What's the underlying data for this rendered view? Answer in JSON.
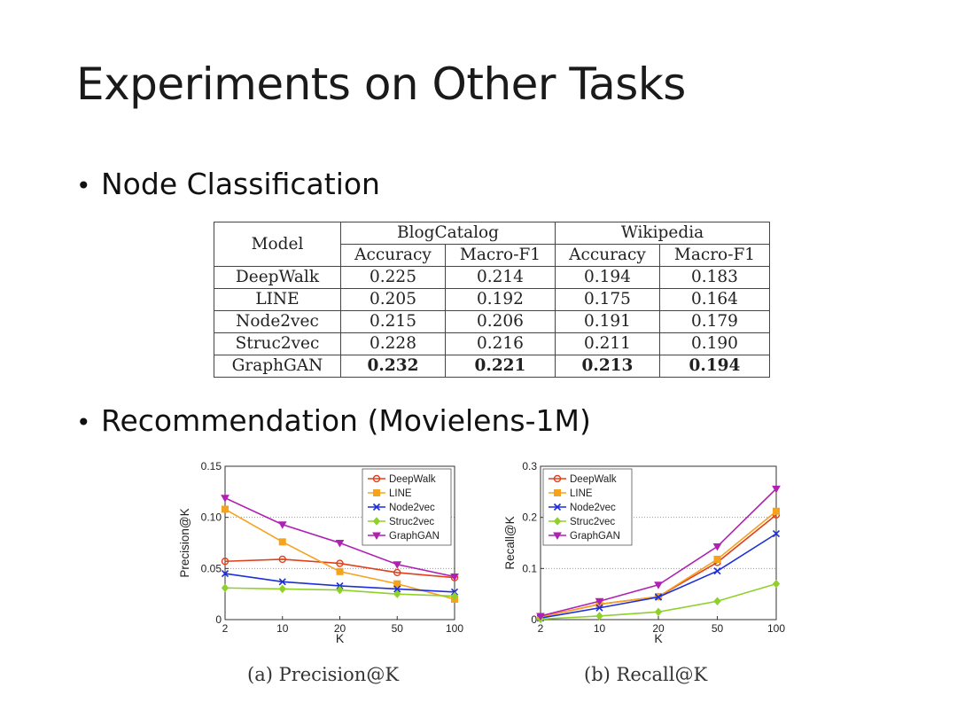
{
  "title": "Experiments on Other Tasks",
  "bullets": [
    "Node Classification",
    "Recommendation (Movielens-1M)"
  ],
  "bullet_symbol": "•",
  "table": {
    "model_header": "Model",
    "groups": [
      "BlogCatalog",
      "Wikipedia"
    ],
    "subheaders": [
      "Accuracy",
      "Macro-F1",
      "Accuracy",
      "Macro-F1"
    ],
    "rows": [
      {
        "model": "DeepWalk",
        "values": [
          "0.225",
          "0.214",
          "0.194",
          "0.183"
        ]
      },
      {
        "model": "LINE",
        "values": [
          "0.205",
          "0.192",
          "0.175",
          "0.164"
        ]
      },
      {
        "model": "Node2vec",
        "values": [
          "0.215",
          "0.206",
          "0.191",
          "0.179"
        ]
      },
      {
        "model": "Struc2vec",
        "values": [
          "0.228",
          "0.216",
          "0.211",
          "0.190"
        ]
      },
      {
        "model": "GraphGAN",
        "values": [
          "0.232",
          "0.221",
          "0.213",
          "0.194"
        ],
        "bold": true
      }
    ]
  },
  "chart_data": [
    {
      "type": "line",
      "caption": "(a) Precision@K",
      "xlabel": "K",
      "ylabel": "Precision@K",
      "x": [
        "2",
        "10",
        "20",
        "50",
        "100"
      ],
      "ylim": [
        0,
        0.15
      ],
      "yticks": [
        "0",
        "0.05",
        "0.10",
        "0.15"
      ],
      "grid": "dotted horizontal",
      "legend": "top-right",
      "series": [
        {
          "name": "DeepWalk",
          "color": "#e0401a",
          "marker": "circle",
          "values": [
            0.057,
            0.059,
            0.055,
            0.046,
            0.041
          ]
        },
        {
          "name": "LINE",
          "color": "#f5a21e",
          "marker": "square",
          "values": [
            0.108,
            0.076,
            0.047,
            0.035,
            0.02
          ]
        },
        {
          "name": "Node2vec",
          "color": "#1d2fd8",
          "marker": "x",
          "values": [
            0.045,
            0.037,
            0.033,
            0.03,
            0.027
          ]
        },
        {
          "name": "Struc2vec",
          "color": "#8fd12a",
          "marker": "diamond",
          "values": [
            0.031,
            0.03,
            0.029,
            0.025,
            0.023
          ]
        },
        {
          "name": "GraphGAN",
          "color": "#b021b3",
          "marker": "triangle-down",
          "values": [
            0.119,
            0.093,
            0.075,
            0.054,
            0.042
          ]
        }
      ]
    },
    {
      "type": "line",
      "caption": "(b) Recall@K",
      "xlabel": "K",
      "ylabel": "Recall@K",
      "x": [
        "2",
        "10",
        "20",
        "50",
        "100"
      ],
      "ylim": [
        0,
        0.3
      ],
      "yticks": [
        "0",
        "0.1",
        "0.2",
        "0.3"
      ],
      "grid": "dotted horizontal",
      "legend": "top-left",
      "series": [
        {
          "name": "DeepWalk",
          "color": "#e0401a",
          "marker": "circle",
          "values": [
            0.005,
            0.03,
            0.045,
            0.112,
            0.205
          ]
        },
        {
          "name": "LINE",
          "color": "#f5a21e",
          "marker": "square",
          "values": [
            0.005,
            0.03,
            0.045,
            0.118,
            0.212
          ]
        },
        {
          "name": "Node2vec",
          "color": "#1d2fd8",
          "marker": "x",
          "values": [
            0.003,
            0.023,
            0.044,
            0.095,
            0.168
          ]
        },
        {
          "name": "Struc2vec",
          "color": "#8fd12a",
          "marker": "diamond",
          "values": [
            0.001,
            0.007,
            0.015,
            0.036,
            0.07
          ]
        },
        {
          "name": "GraphGAN",
          "color": "#b021b3",
          "marker": "triangle-down",
          "values": [
            0.007,
            0.036,
            0.068,
            0.143,
            0.256
          ]
        }
      ]
    }
  ]
}
